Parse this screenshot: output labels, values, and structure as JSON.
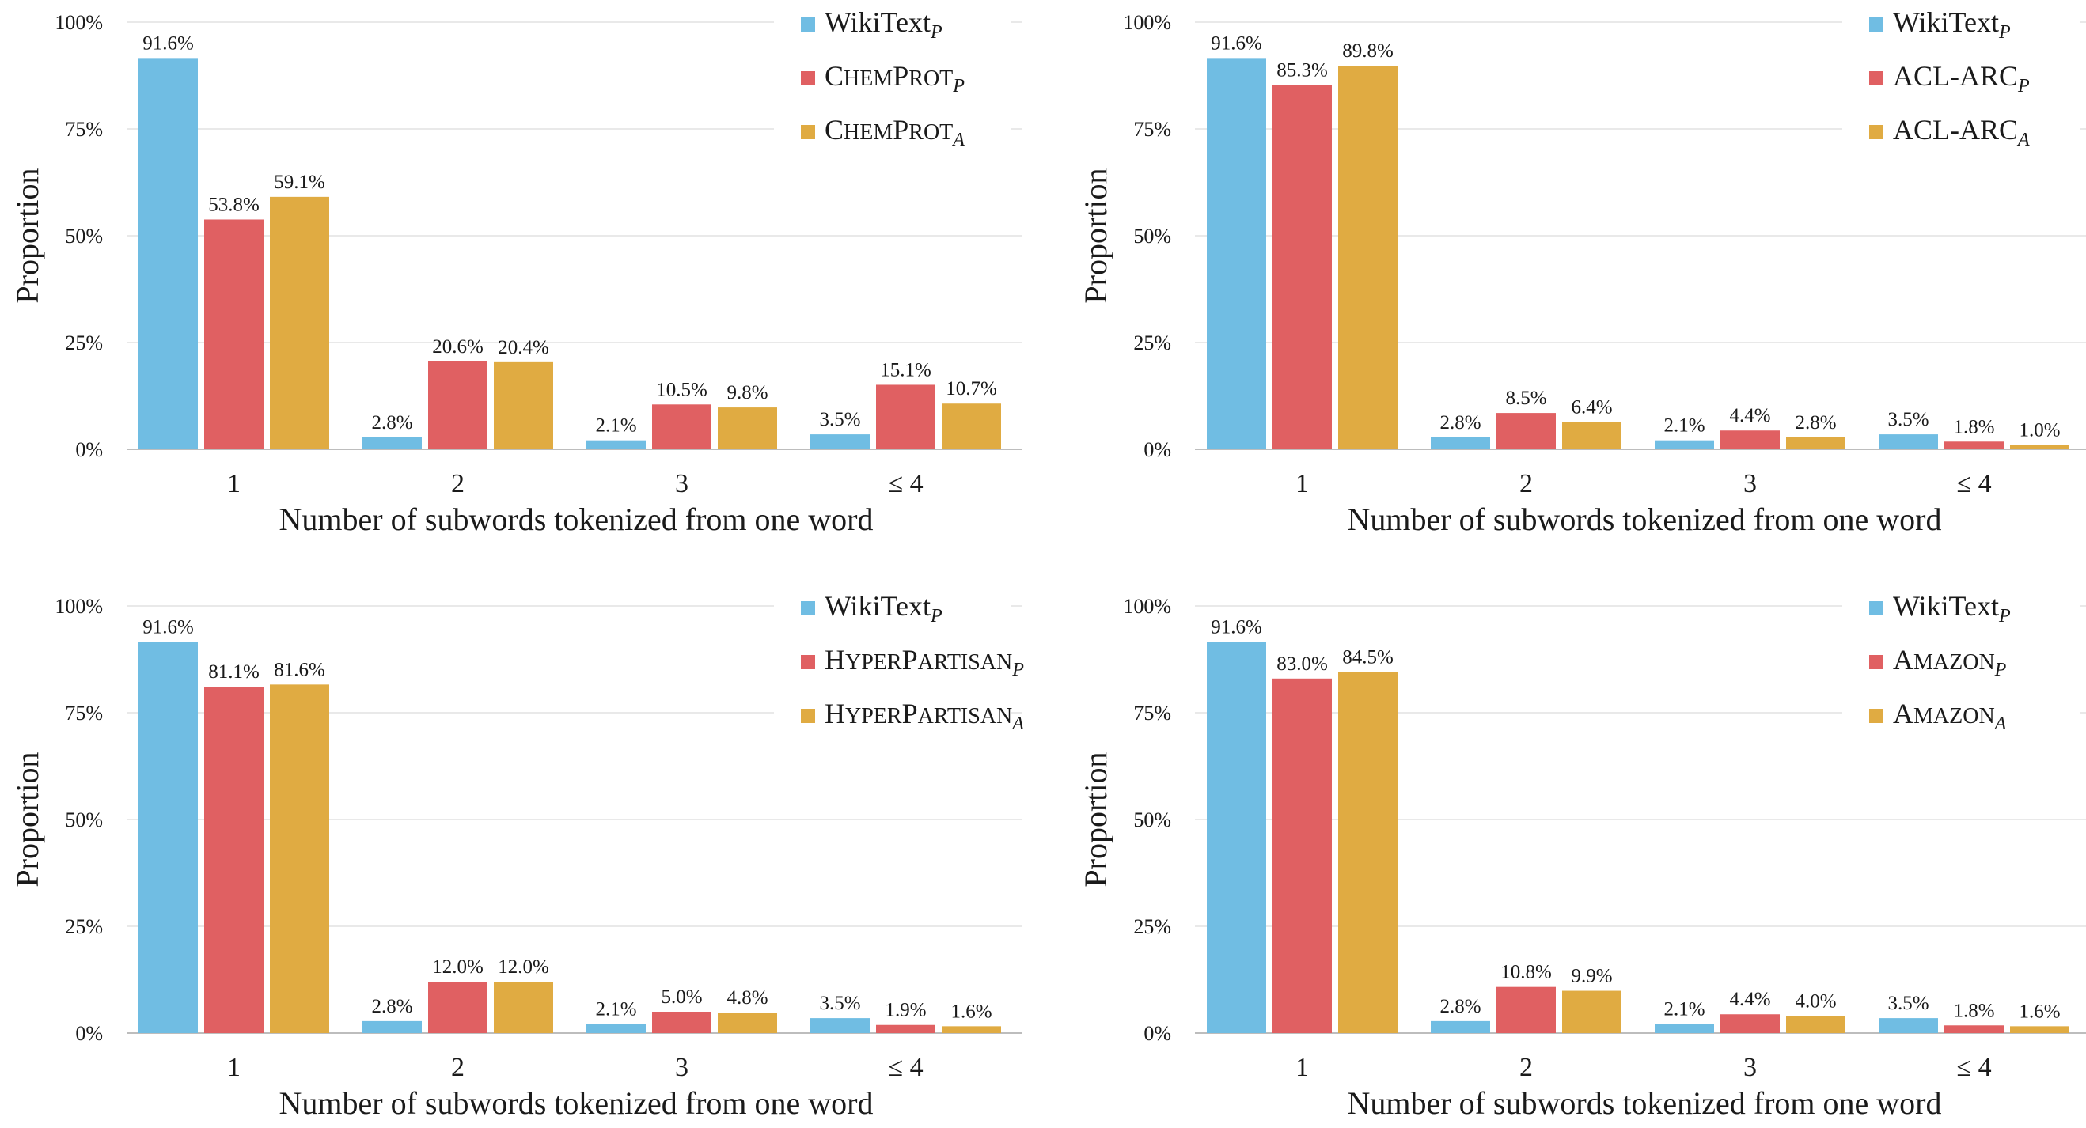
{
  "colors": {
    "wikitext": "#70bde3",
    "red": "#e06062",
    "gold": "#e0ab42",
    "grid": "#e2e2e2",
    "axis": "#bdbdbd"
  },
  "chart_data": [
    {
      "type": "bar",
      "categories": [
        "1",
        "2",
        "3",
        "≤ 4"
      ],
      "ylim": [
        0,
        100
      ],
      "yticks": [
        "0%",
        "25%",
        "50%",
        "75%",
        "100%"
      ],
      "ylabel": "Proportion",
      "xlabel": "Number of subwords tokenized from one word",
      "legend_position": "top-right",
      "series": [
        {
          "base": "WikiText",
          "sub": "P",
          "smallcaps": false,
          "color": "#70bde3",
          "values": [
            91.6,
            2.8,
            2.1,
            3.5
          ],
          "labels": [
            "91.6%",
            "2.8%",
            "2.1%",
            "3.5%"
          ]
        },
        {
          "base": "ChemProt",
          "sub": "P",
          "smallcaps": true,
          "color": "#e06062",
          "values": [
            53.8,
            20.6,
            10.5,
            15.1
          ],
          "labels": [
            "53.8%",
            "20.6%",
            "10.5%",
            "15.1%"
          ]
        },
        {
          "base": "ChemProt",
          "sub": "A",
          "smallcaps": true,
          "color": "#e0ab42",
          "values": [
            59.1,
            20.4,
            9.8,
            10.7
          ],
          "labels": [
            "59.1%",
            "20.4%",
            "9.8%",
            "10.7%"
          ]
        }
      ]
    },
    {
      "type": "bar",
      "categories": [
        "1",
        "2",
        "3",
        "≤ 4"
      ],
      "ylim": [
        0,
        100
      ],
      "yticks": [
        "0%",
        "25%",
        "50%",
        "75%",
        "100%"
      ],
      "ylabel": "Proportion",
      "xlabel": "Number of subwords tokenized from one word",
      "legend_position": "top-right",
      "series": [
        {
          "base": "WikiText",
          "sub": "P",
          "smallcaps": false,
          "color": "#70bde3",
          "values": [
            91.6,
            2.8,
            2.1,
            3.5
          ],
          "labels": [
            "91.6%",
            "2.8%",
            "2.1%",
            "3.5%"
          ]
        },
        {
          "base": "ACL-ARC",
          "sub": "P",
          "smallcaps": false,
          "color": "#e06062",
          "values": [
            85.3,
            8.5,
            4.4,
            1.8
          ],
          "labels": [
            "85.3%",
            "8.5%",
            "4.4%",
            "1.8%"
          ]
        },
        {
          "base": "ACL-ARC",
          "sub": "A",
          "smallcaps": false,
          "color": "#e0ab42",
          "values": [
            89.8,
            6.4,
            2.8,
            1.0
          ],
          "labels": [
            "89.8%",
            "6.4%",
            "2.8%",
            "1.0%"
          ]
        }
      ]
    },
    {
      "type": "bar",
      "categories": [
        "1",
        "2",
        "3",
        "≤ 4"
      ],
      "ylim": [
        0,
        100
      ],
      "yticks": [
        "0%",
        "25%",
        "50%",
        "75%",
        "100%"
      ],
      "ylabel": "Proportion",
      "xlabel": "Number of subwords tokenized from one word",
      "legend_position": "top-right",
      "series": [
        {
          "base": "WikiText",
          "sub": "P",
          "smallcaps": false,
          "color": "#70bde3",
          "values": [
            91.6,
            2.8,
            2.1,
            3.5
          ],
          "labels": [
            "91.6%",
            "2.8%",
            "2.1%",
            "3.5%"
          ]
        },
        {
          "base": "HyperPartisan",
          "sub": "P",
          "smallcaps": true,
          "color": "#e06062",
          "values": [
            81.1,
            12.0,
            5.0,
            1.9
          ],
          "labels": [
            "81.1%",
            "12.0%",
            "5.0%",
            "1.9%"
          ]
        },
        {
          "base": "HyperPartisan",
          "sub": "A",
          "smallcaps": true,
          "color": "#e0ab42",
          "values": [
            81.6,
            12.0,
            4.8,
            1.6
          ],
          "labels": [
            "81.6%",
            "12.0%",
            "4.8%",
            "1.6%"
          ]
        }
      ]
    },
    {
      "type": "bar",
      "categories": [
        "1",
        "2",
        "3",
        "≤ 4"
      ],
      "ylim": [
        0,
        100
      ],
      "yticks": [
        "0%",
        "25%",
        "50%",
        "75%",
        "100%"
      ],
      "ylabel": "Proportion",
      "xlabel": "Number of subwords tokenized from one word",
      "legend_position": "top-right",
      "series": [
        {
          "base": "WikiText",
          "sub": "P",
          "smallcaps": false,
          "color": "#70bde3",
          "values": [
            91.6,
            2.8,
            2.1,
            3.5
          ],
          "labels": [
            "91.6%",
            "2.8%",
            "2.1%",
            "3.5%"
          ]
        },
        {
          "base": "Amazon",
          "sub": "P",
          "smallcaps": true,
          "color": "#e06062",
          "values": [
            83.0,
            10.8,
            4.4,
            1.8
          ],
          "labels": [
            "83.0%",
            "10.8%",
            "4.4%",
            "1.8%"
          ]
        },
        {
          "base": "Amazon",
          "sub": "A",
          "smallcaps": true,
          "color": "#e0ab42",
          "values": [
            84.5,
            9.9,
            4.0,
            1.6
          ],
          "labels": [
            "84.5%",
            "9.9%",
            "4.0%",
            "1.6%"
          ]
        }
      ]
    }
  ]
}
